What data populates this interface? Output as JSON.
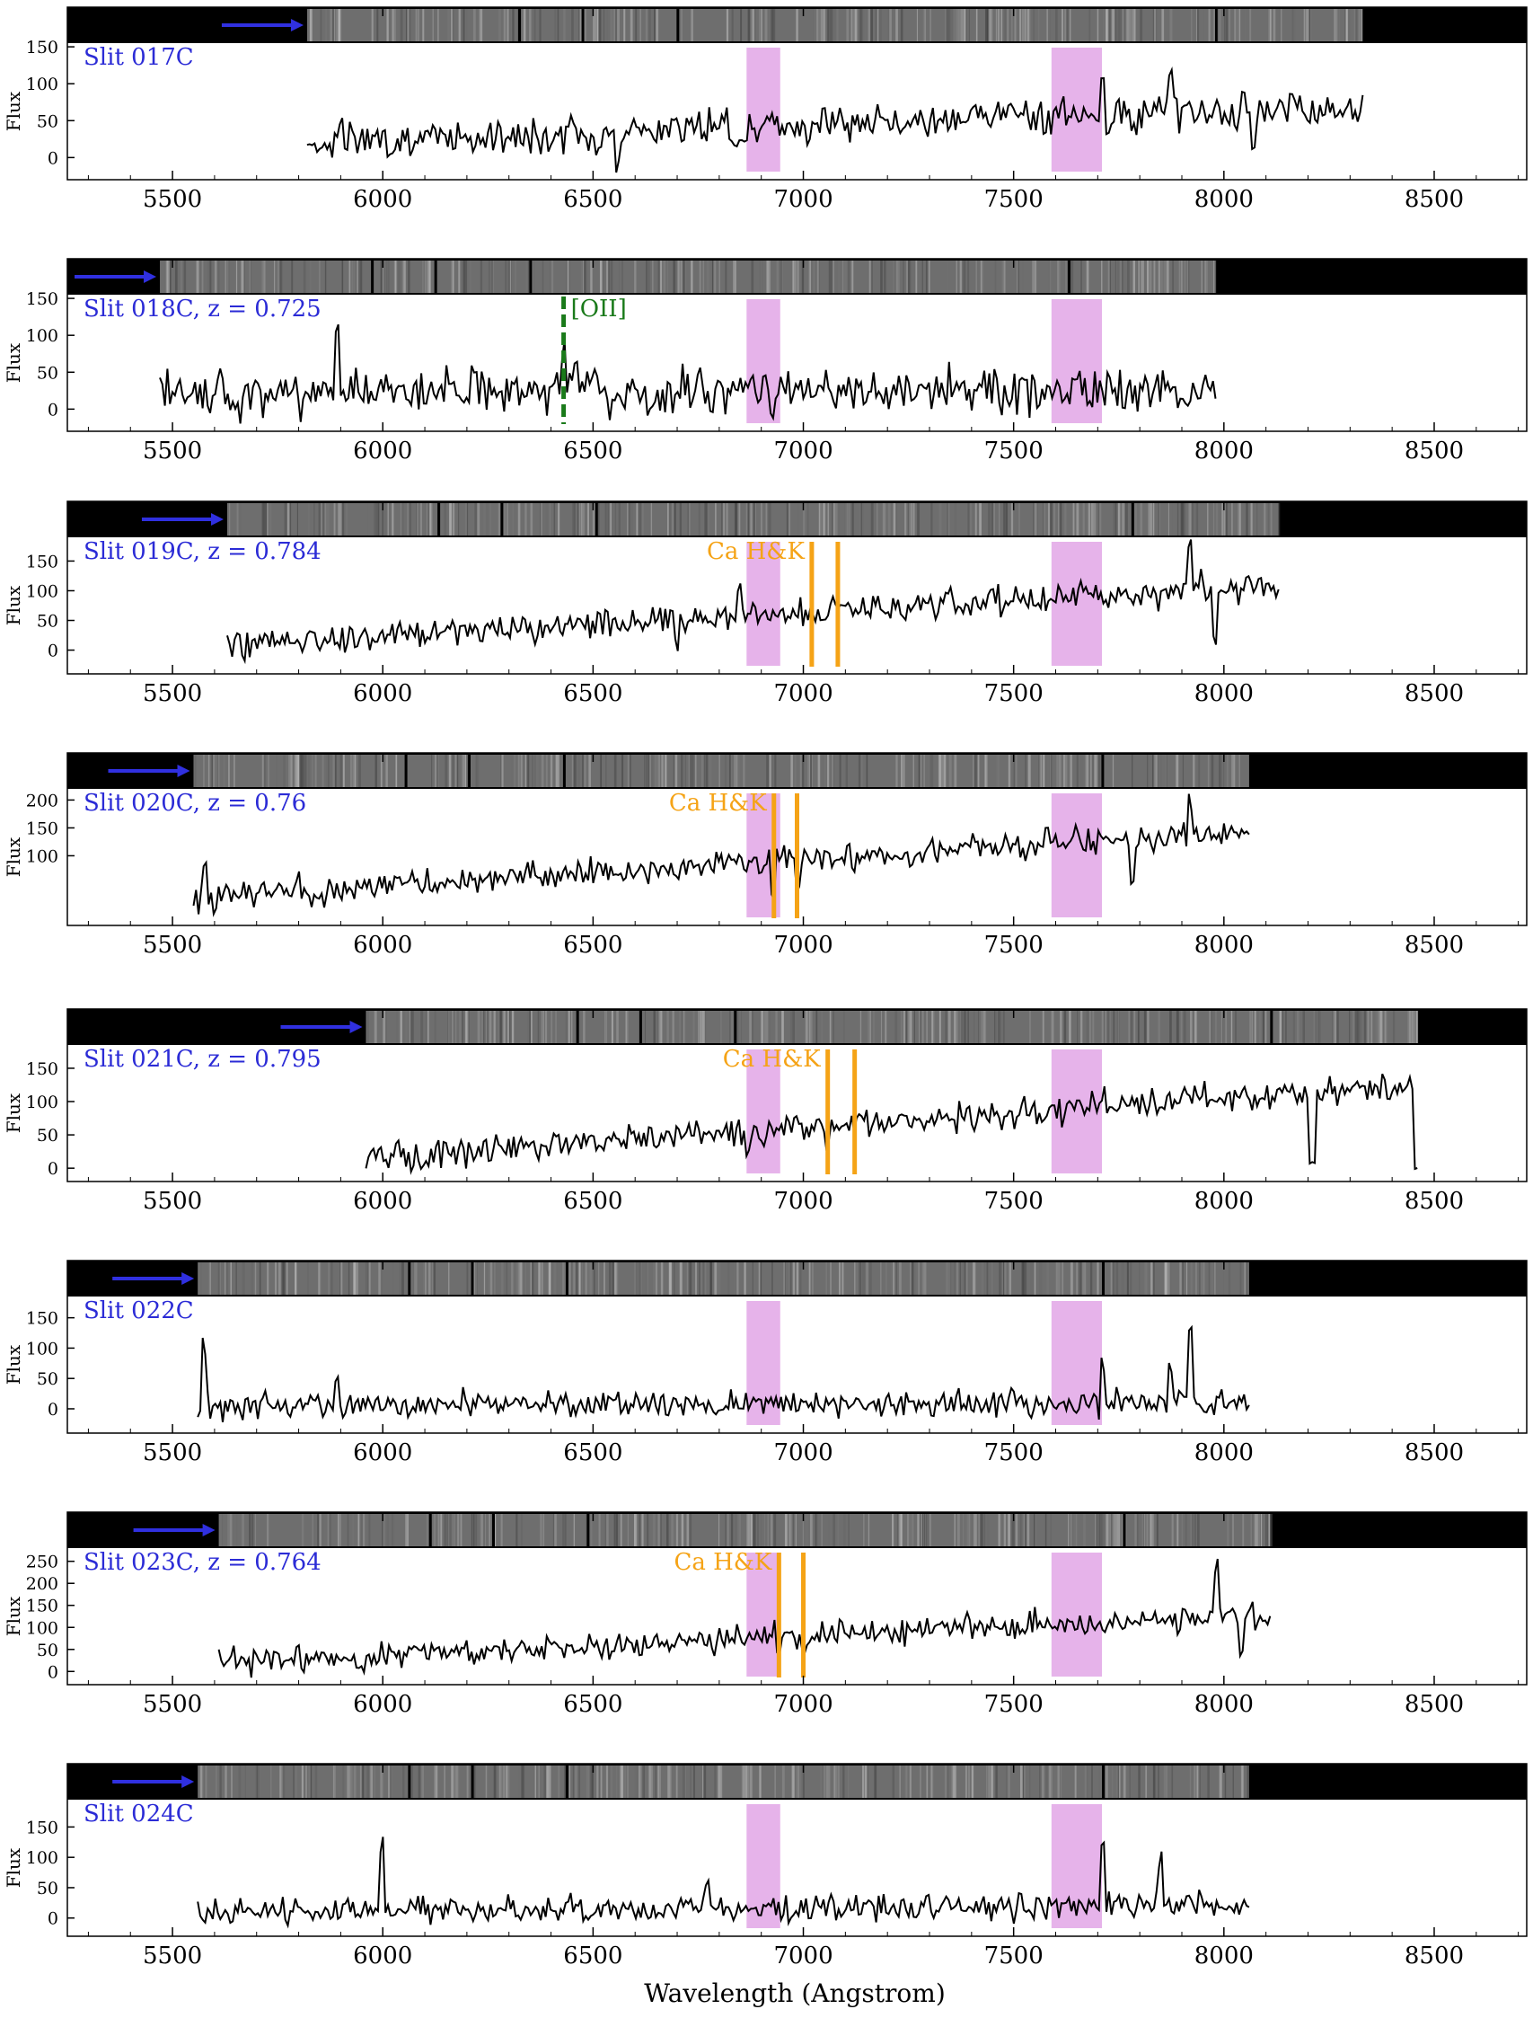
{
  "figure": {
    "xlabel": "Wavelength (Angstrom)",
    "ylabel": "Flux",
    "colors": {
      "spectrum": "#000000",
      "telluric_band": "#e6b3ea",
      "slit_label": "#2b2bd6",
      "arrow": "#3030e0",
      "ca_hk": "#f5a316",
      "oii": "#1a7a1a",
      "strip_background": "#000000"
    },
    "tick_icon": "tick-mark",
    "arrow_icon": "blue-arrow-icon"
  },
  "chart_data": [
    {
      "type": "line",
      "slit": "Slit 017C",
      "redshift": "",
      "x_range": [
        5820,
        8330
      ],
      "xlim": [
        5250,
        8720
      ],
      "xticks": [
        5500,
        6000,
        6500,
        7000,
        7500,
        8000,
        8500
      ],
      "ylim": [
        -30,
        155
      ],
      "yticks": [
        0,
        50,
        100,
        150
      ],
      "baseline": 20,
      "slope": 50,
      "noise": 17,
      "seed": 17,
      "features": [
        [
          5900,
          30
        ],
        [
          6560,
          -40
        ],
        [
          7050,
          30
        ],
        [
          7710,
          50
        ],
        [
          7870,
          60
        ],
        [
          8070,
          -60
        ]
      ],
      "telluric_bands": [
        [
          6865,
          6945
        ],
        [
          7590,
          7710
        ]
      ],
      "lines": []
    },
    {
      "type": "line",
      "slit": "Slit 018C",
      "redshift": "0.725",
      "x_range": [
        5470,
        7980
      ],
      "xlim": [
        5250,
        8720
      ],
      "xticks": [
        5500,
        6000,
        6500,
        7000,
        7500,
        8000,
        8500
      ],
      "ylim": [
        -30,
        155
      ],
      "yticks": [
        0,
        50,
        100,
        150
      ],
      "baseline": 20,
      "slope": 5,
      "noise": 22,
      "seed": 18,
      "features": [
        [
          5890,
          70
        ],
        [
          6430,
          80
        ],
        [
          6750,
          60
        ],
        [
          7760,
          -25
        ]
      ],
      "telluric_bands": [
        [
          6865,
          6945
        ],
        [
          7590,
          7710
        ]
      ],
      "lines": [
        {
          "label": "[OII]",
          "kind": "oii",
          "wavelengths": [
            6430
          ]
        }
      ]
    },
    {
      "type": "line",
      "slit": "Slit 019C",
      "redshift": "0.784",
      "x_range": [
        5630,
        8130
      ],
      "xlim": [
        5250,
        8720
      ],
      "xticks": [
        5500,
        6000,
        6500,
        7000,
        7500,
        8000,
        8500
      ],
      "ylim": [
        -40,
        190
      ],
      "yticks": [
        0,
        50,
        100,
        150
      ],
      "baseline": 10,
      "slope": 100,
      "noise": 18,
      "seed": 19,
      "features": [
        [
          6700,
          -45
        ],
        [
          6850,
          50
        ],
        [
          7920,
          80
        ],
        [
          7980,
          -70
        ]
      ],
      "telluric_bands": [
        [
          6865,
          6945
        ],
        [
          7590,
          7710
        ]
      ],
      "lines": [
        {
          "label": "Ca H&K",
          "kind": "cahk",
          "wavelengths": [
            7020,
            7082
          ]
        }
      ]
    },
    {
      "type": "line",
      "slit": "Slit 020C",
      "redshift": "0.76",
      "x_range": [
        5550,
        8060
      ],
      "xlim": [
        5250,
        8720
      ],
      "xticks": [
        5500,
        6000,
        6500,
        7000,
        7500,
        8000,
        8500
      ],
      "ylim": [
        -25,
        220
      ],
      "yticks": [
        100,
        150,
        200
      ],
      "baseline": 25,
      "slope": 120,
      "noise": 18,
      "seed": 20,
      "features": [
        [
          5575,
          60
        ],
        [
          6930,
          -60
        ],
        [
          6985,
          -50
        ],
        [
          7780,
          -70
        ],
        [
          7920,
          70
        ]
      ],
      "telluric_bands": [
        [
          6865,
          6945
        ],
        [
          7590,
          7710
        ]
      ],
      "lines": [
        {
          "label": "Ca H&K",
          "kind": "cahk",
          "wavelengths": [
            6930,
            6985
          ]
        }
      ]
    },
    {
      "type": "line",
      "slit": "Slit 021C",
      "redshift": "0.795",
      "x_range": [
        5960,
        8460
      ],
      "xlim": [
        5250,
        8720
      ],
      "xticks": [
        5500,
        6000,
        6500,
        7000,
        7500,
        8000,
        8500
      ],
      "ylim": [
        -20,
        185
      ],
      "yticks": [
        0,
        50,
        100,
        150
      ],
      "baseline": 15,
      "slope": 110,
      "noise": 15,
      "seed": 21,
      "features": [
        [
          6870,
          -40
        ],
        [
          7060,
          -40
        ],
        [
          8210,
          -110
        ],
        [
          8460,
          -120
        ]
      ],
      "telluric_bands": [
        [
          6865,
          6945
        ],
        [
          7590,
          7710
        ]
      ],
      "lines": [
        {
          "label": "Ca H&K",
          "kind": "cahk",
          "wavelengths": [
            7058,
            7122
          ]
        }
      ]
    },
    {
      "type": "line",
      "slit": "Slit 022C",
      "redshift": "",
      "x_range": [
        5560,
        8060
      ],
      "xlim": [
        5250,
        8720
      ],
      "xticks": [
        5500,
        6000,
        6500,
        7000,
        7500,
        8000,
        8500
      ],
      "ylim": [
        -40,
        185
      ],
      "yticks": [
        0,
        50,
        100,
        150
      ],
      "baseline": 5,
      "slope": 5,
      "noise": 15,
      "seed": 22,
      "features": [
        [
          5575,
          110
        ],
        [
          5890,
          50
        ],
        [
          7710,
          60
        ],
        [
          7870,
          70
        ],
        [
          7920,
          120
        ]
      ],
      "telluric_bands": [
        [
          6865,
          6945
        ],
        [
          7590,
          7710
        ]
      ],
      "lines": []
    },
    {
      "type": "line",
      "slit": "Slit 023C",
      "redshift": "0.764",
      "x_range": [
        5610,
        8110
      ],
      "xlim": [
        5250,
        8720
      ],
      "xticks": [
        5500,
        6000,
        6500,
        7000,
        7500,
        8000,
        8500
      ],
      "ylim": [
        -30,
        280
      ],
      "yticks": [
        0,
        50,
        100,
        150,
        200,
        250
      ],
      "baseline": 20,
      "slope": 110,
      "noise": 22,
      "seed": 23,
      "features": [
        [
          6940,
          -40
        ],
        [
          7000,
          -40
        ],
        [
          7980,
          110
        ],
        [
          8040,
          -80
        ]
      ],
      "telluric_bands": [
        [
          6865,
          6945
        ],
        [
          7590,
          7710
        ]
      ],
      "lines": [
        {
          "label": "Ca H&K",
          "kind": "cahk",
          "wavelengths": [
            6942,
            7000
          ]
        }
      ]
    },
    {
      "type": "line",
      "slit": "Slit 024C",
      "redshift": "",
      "x_range": [
        5560,
        8060
      ],
      "xlim": [
        5250,
        8720
      ],
      "xticks": [
        5500,
        6000,
        6500,
        7000,
        7500,
        8000,
        8500
      ],
      "ylim": [
        -30,
        195
      ],
      "yticks": [
        0,
        50,
        100,
        150
      ],
      "baseline": 10,
      "slope": 10,
      "noise": 15,
      "seed": 24,
      "features": [
        [
          6000,
          110
        ],
        [
          6770,
          40
        ],
        [
          7710,
          120
        ],
        [
          7850,
          90
        ]
      ],
      "telluric_bands": [
        [
          6865,
          6945
        ],
        [
          7590,
          7710
        ]
      ],
      "lines": []
    }
  ]
}
